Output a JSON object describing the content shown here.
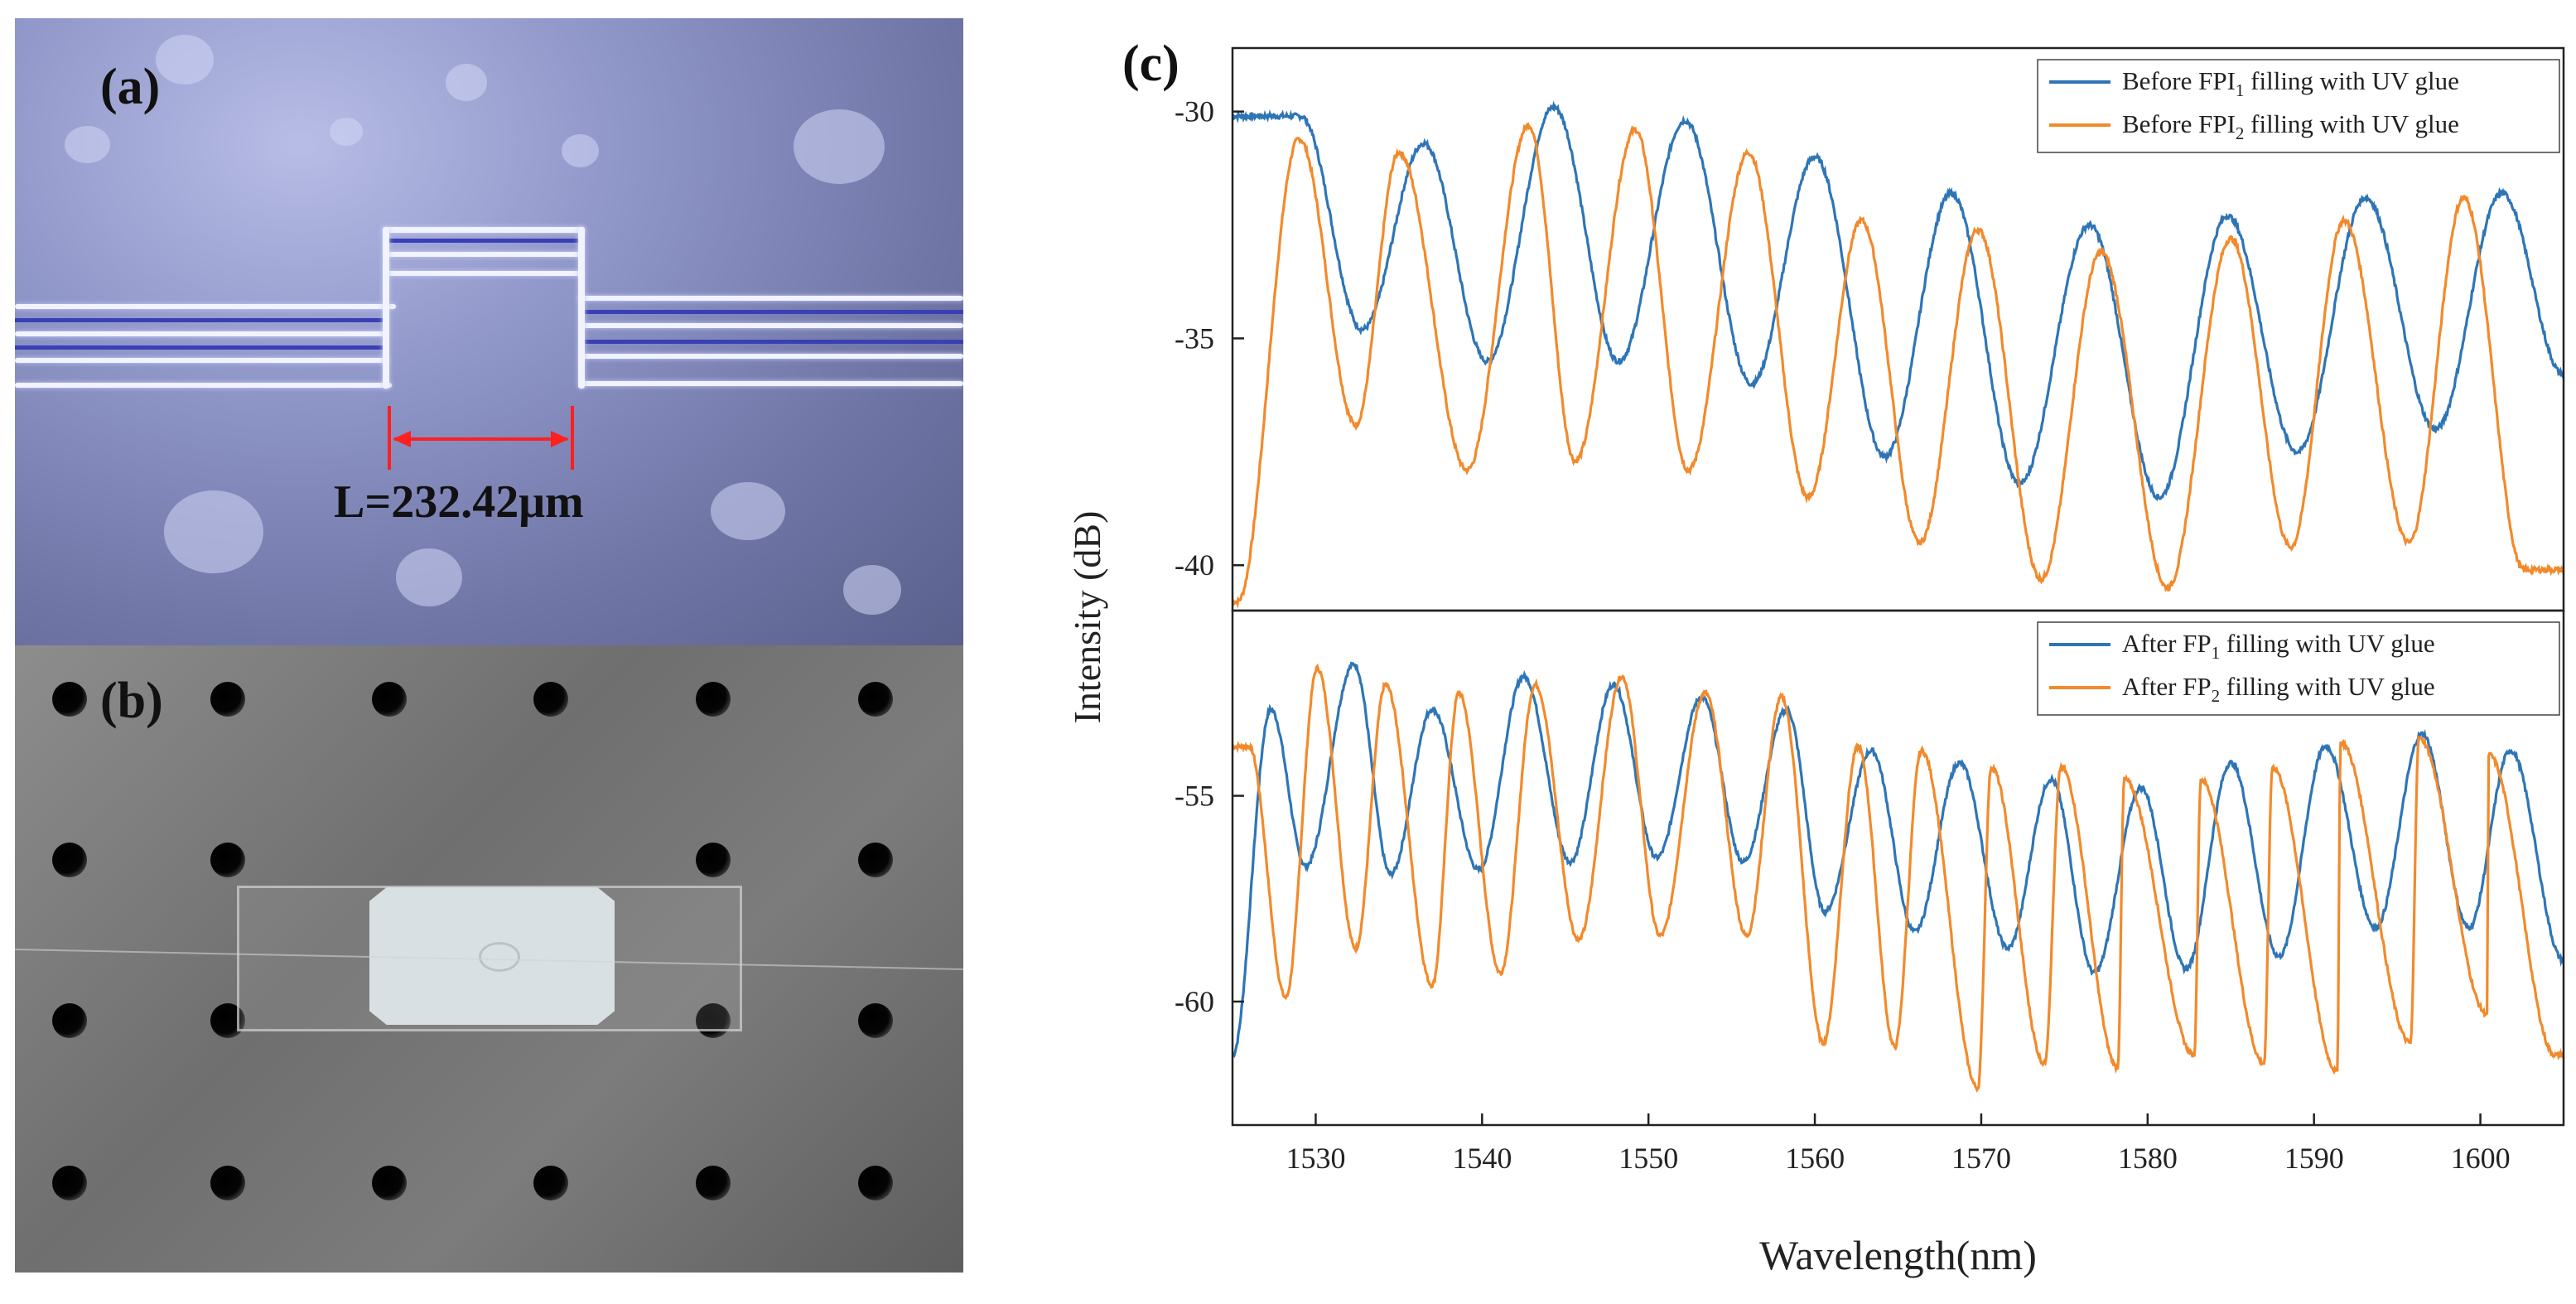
{
  "panels": {
    "a": {
      "label": "(a)",
      "measurement": "L=232.42μm"
    },
    "b": {
      "label": "(b)"
    },
    "c": {
      "label": "(c)"
    }
  },
  "colors": {
    "blue": "#2e75b6",
    "orange": "#f28a2b"
  },
  "chart_data": {
    "type": "line",
    "xlabel": "Wavelength(nm)",
    "ylabel": "Intensity (dB)",
    "xlim": [
      1525,
      1605
    ],
    "xticks": [
      1530,
      1540,
      1550,
      1560,
      1570,
      1580,
      1590,
      1600
    ],
    "panels": [
      {
        "name": "top",
        "ylim": [
          -41,
          -28.6
        ],
        "yticks": [
          -30,
          -35,
          -40
        ],
        "series": [
          {
            "name": "Before FPI1 filling with UV glue",
            "legend_base": "Before FPI",
            "legend_sub": "1",
            "legend_rest": " filling with UV glue",
            "color": "#2e75b6",
            "period": 7.78,
            "phase": 1529.1,
            "peaks": [
              [
                1529.1,
                -30.1
              ],
              [
                1536.5,
                -30.7
              ],
              [
                1544.3,
                -29.9
              ],
              [
                1552.2,
                -30.2
              ],
              [
                1560.0,
                -31.0
              ],
              [
                1568.2,
                -31.8
              ],
              [
                1576.5,
                -32.5
              ],
              [
                1584.8,
                -32.3
              ],
              [
                1593.1,
                -31.9
              ],
              [
                1601.3,
                -31.8
              ]
            ],
            "troughs": [
              [
                1532.8,
                -34.8
              ],
              [
                1540.3,
                -35.5
              ],
              [
                1548.2,
                -35.5
              ],
              [
                1556.2,
                -36.0
              ],
              [
                1564.2,
                -37.6
              ],
              [
                1572.3,
                -38.2
              ],
              [
                1580.7,
                -38.5
              ],
              [
                1589.0,
                -37.5
              ],
              [
                1597.3,
                -37.0
              ],
              [
                1605.0,
                -35.8
              ]
            ]
          },
          {
            "name": "Before FPI2 filling with UV glue",
            "legend_base": "Before FPI",
            "legend_sub": "2",
            "legend_rest": " filling with UV glue",
            "color": "#f28a2b",
            "peaks": [
              [
                1529.0,
                -30.6
              ],
              [
                1535.0,
                -30.9
              ],
              [
                1542.8,
                -30.3
              ],
              [
                1549.2,
                -30.4
              ],
              [
                1556.0,
                -30.9
              ],
              [
                1562.8,
                -32.4
              ],
              [
                1569.8,
                -32.6
              ],
              [
                1577.2,
                -33.1
              ],
              [
                1585.0,
                -32.8
              ],
              [
                1591.8,
                -32.4
              ],
              [
                1599.0,
                -31.9
              ]
            ],
            "troughs": [
              [
                1525.3,
                -40.8
              ],
              [
                1532.4,
                -36.9
              ],
              [
                1539.1,
                -37.9
              ],
              [
                1545.6,
                -37.7
              ],
              [
                1552.4,
                -37.9
              ],
              [
                1559.6,
                -38.5
              ],
              [
                1566.3,
                -39.5
              ],
              [
                1573.6,
                -40.3
              ],
              [
                1581.2,
                -40.5
              ],
              [
                1588.6,
                -39.6
              ],
              [
                1595.7,
                -39.5
              ],
              [
                1602.6,
                -40.1
              ]
            ]
          }
        ]
      },
      {
        "name": "bottom",
        "ylim": [
          -63,
          -50.5
        ],
        "yticks": [
          -55,
          -60
        ],
        "series": [
          {
            "name": "After FP1 filling with UV glue",
            "legend_base": "After FP",
            "legend_sub": "1",
            "legend_rest": " filling with UV glue",
            "color": "#2e75b6",
            "peaks": [
              [
                1527.3,
                -52.9
              ],
              [
                1532.3,
                -51.8
              ],
              [
                1537.0,
                -52.9
              ],
              [
                1542.5,
                -52.1
              ],
              [
                1547.9,
                -52.3
              ],
              [
                1553.2,
                -52.6
              ],
              [
                1558.3,
                -52.9
              ],
              [
                1563.4,
                -53.9
              ],
              [
                1568.7,
                -54.2
              ],
              [
                1574.2,
                -54.6
              ],
              [
                1579.6,
                -54.8
              ],
              [
                1585.0,
                -54.2
              ],
              [
                1590.7,
                -53.8
              ],
              [
                1596.5,
                -53.5
              ],
              [
                1601.8,
                -53.9
              ]
            ],
            "troughs": [
              [
                1525.0,
                -61.3
              ],
              [
                1529.4,
                -56.7
              ],
              [
                1534.5,
                -56.9
              ],
              [
                1539.8,
                -56.8
              ],
              [
                1545.3,
                -56.6
              ],
              [
                1550.5,
                -56.5
              ],
              [
                1555.7,
                -56.6
              ],
              [
                1560.6,
                -57.8
              ],
              [
                1566.0,
                -58.3
              ],
              [
                1571.6,
                -58.7
              ],
              [
                1576.8,
                -59.3
              ],
              [
                1582.3,
                -59.2
              ],
              [
                1587.9,
                -58.9
              ],
              [
                1593.7,
                -58.2
              ],
              [
                1599.3,
                -58.2
              ],
              [
                1605.0,
                -59.0
              ]
            ]
          },
          {
            "name": "After FP2 filling with UV glue",
            "legend_base": "After FP",
            "legend_sub": "2",
            "legend_rest": " filling with UV glue",
            "color": "#f28a2b",
            "peaks": [
              [
                1526.0,
                -53.8
              ],
              [
                1530.1,
                -51.9
              ],
              [
                1534.2,
                -52.3
              ],
              [
                1538.6,
                -52.5
              ],
              [
                1543.2,
                -52.3
              ],
              [
                1548.4,
                -52.1
              ],
              [
                1553.4,
                -52.5
              ],
              [
                1558.0,
                -52.6
              ],
              [
                1562.6,
                -53.8
              ],
              [
                1566.4,
                -53.9
              ],
              [
                1570.6,
                -54.3
              ],
              [
                1574.8,
                -54.3
              ],
              [
                1578.6,
                -54.6
              ],
              [
                1583.2,
                -54.6
              ],
              [
                1587.5,
                -54.3
              ],
              [
                1591.6,
                -53.7
              ],
              [
                1596.3,
                -53.6
              ],
              [
                1600.5,
                -54.0
              ]
            ],
            "troughs": [
              [
                1528.2,
                -59.9
              ],
              [
                1532.4,
                -58.7
              ],
              [
                1537.0,
                -59.6
              ],
              [
                1541.1,
                -59.3
              ],
              [
                1545.8,
                -58.5
              ],
              [
                1550.7,
                -58.4
              ],
              [
                1555.9,
                -58.4
              ],
              [
                1560.5,
                -61.0
              ],
              [
                1564.8,
                -61.1
              ],
              [
                1569.8,
                -62.1
              ],
              [
                1573.8,
                -61.5
              ],
              [
                1578.2,
                -61.6
              ],
              [
                1582.8,
                -61.3
              ],
              [
                1587.0,
                -61.5
              ],
              [
                1591.4,
                -61.7
              ],
              [
                1595.8,
                -61.0
              ],
              [
                1600.4,
                -60.3
              ],
              [
                1604.5,
                -61.3
              ]
            ]
          }
        ]
      }
    ]
  }
}
